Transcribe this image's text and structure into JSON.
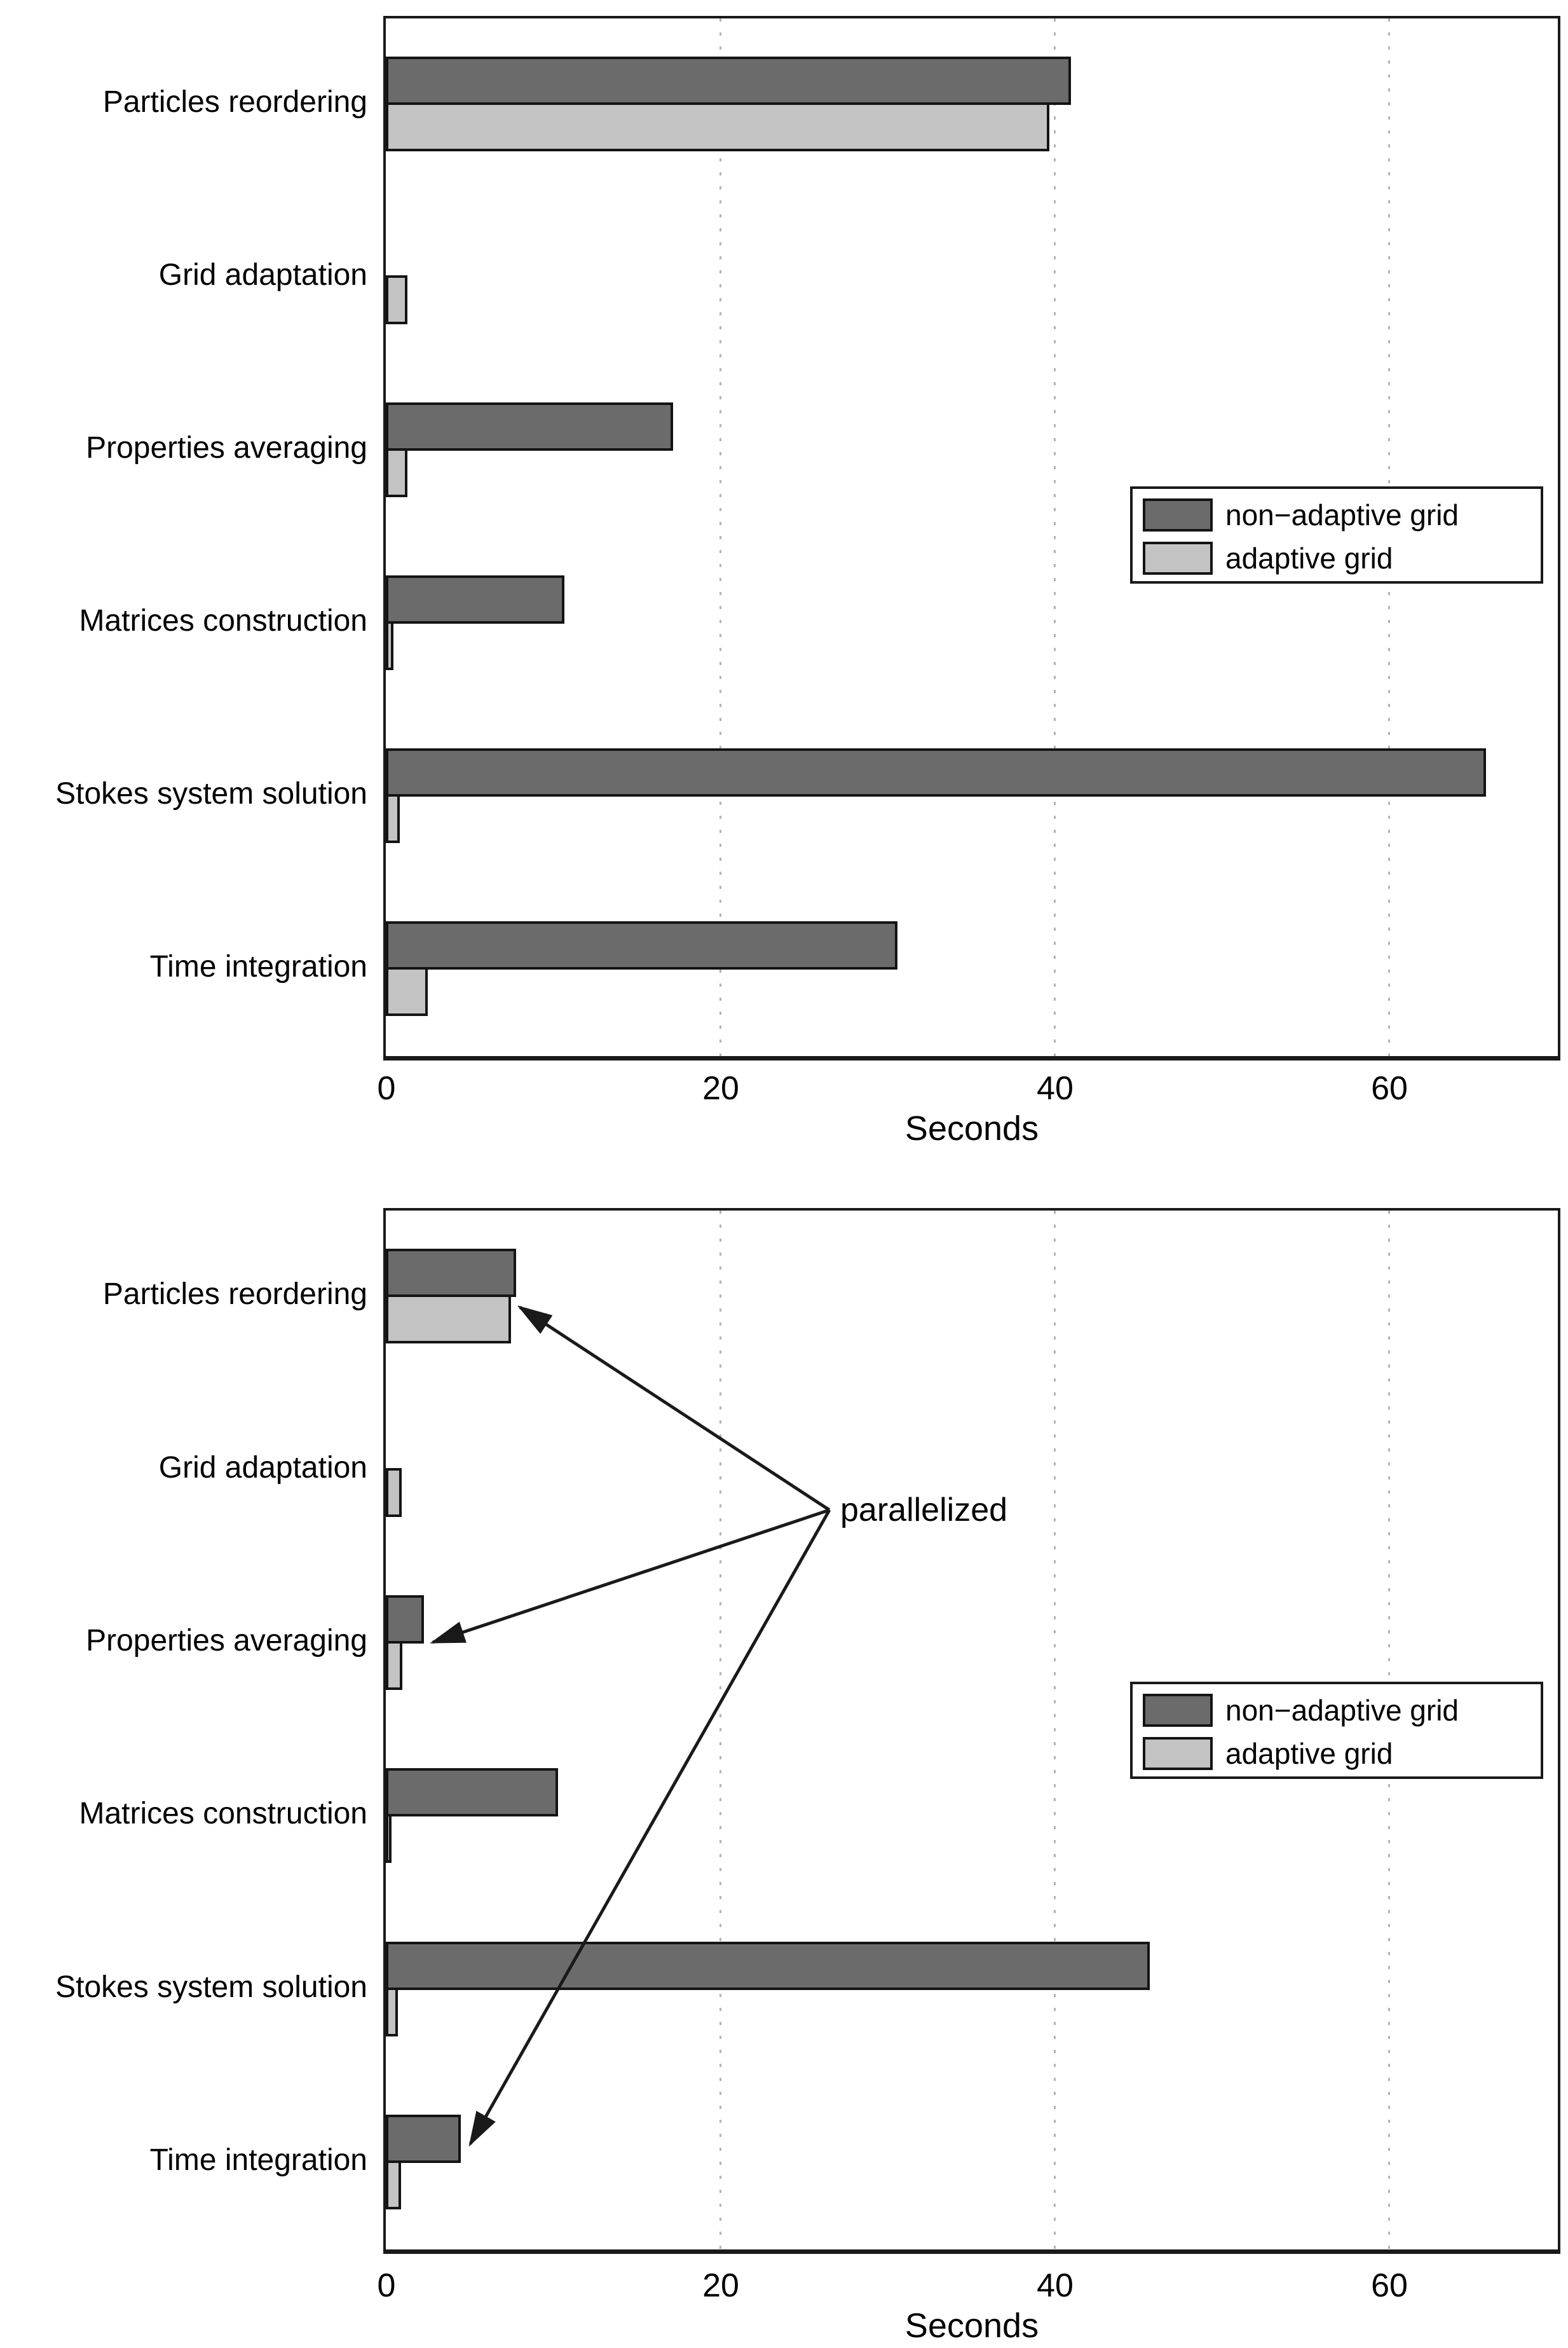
{
  "figure": {
    "background": "#ffffff",
    "text_color": "#000000",
    "gridline_color": "#b4b4b4",
    "bar_edge_color": "#141414"
  },
  "chart_data": [
    {
      "type": "bar",
      "orientation": "horizontal",
      "title": "",
      "xlabel": "Seconds",
      "xticks": [
        "0",
        "20",
        "40",
        "60"
      ],
      "xtick_values": [
        0,
        20,
        40,
        60
      ],
      "xlim": [
        0,
        70
      ],
      "grid": "vertical dotted gridlines at 20, 40, 60",
      "legend_position": "middle-right",
      "categories": [
        "Particles reordering",
        "Grid adaptation",
        "Properties averaging",
        "Matrices construction",
        "Stokes system solution",
        "Time integration"
      ],
      "series": [
        {
          "name": "non−adaptive grid",
          "color": "#6b6b6b",
          "values": [
            41,
            0,
            17.2,
            10.7,
            65.8,
            30.6
          ]
        },
        {
          "name": "adaptive grid",
          "color": "#c3c3c3",
          "values": [
            39.7,
            1.3,
            1.3,
            0.45,
            0.85,
            2.5
          ]
        }
      ]
    },
    {
      "type": "bar",
      "orientation": "horizontal",
      "title": "",
      "xlabel": "Seconds",
      "xticks": [
        "0",
        "20",
        "40",
        "60"
      ],
      "xtick_values": [
        0,
        20,
        40,
        60
      ],
      "xlim": [
        0,
        70
      ],
      "grid": "vertical dotted gridlines at 20, 40, 60",
      "legend_position": "middle-right",
      "categories": [
        "Particles reordering",
        "Grid adaptation",
        "Properties averaging",
        "Matrices construction",
        "Stokes system solution",
        "Time integration"
      ],
      "series": [
        {
          "name": "non−adaptive grid",
          "color": "#6b6b6b",
          "values": [
            7.8,
            0,
            2.3,
            10.3,
            45.7,
            4.5
          ]
        },
        {
          "name": "adaptive grid",
          "color": "#c3c3c3",
          "values": [
            7.5,
            0.95,
            1.0,
            0.3,
            0.72,
            0.9
          ]
        }
      ],
      "annotation": {
        "text": "parallelized",
        "targets": [
          "Particles reordering",
          "Properties averaging",
          "Time integration"
        ]
      }
    }
  ]
}
